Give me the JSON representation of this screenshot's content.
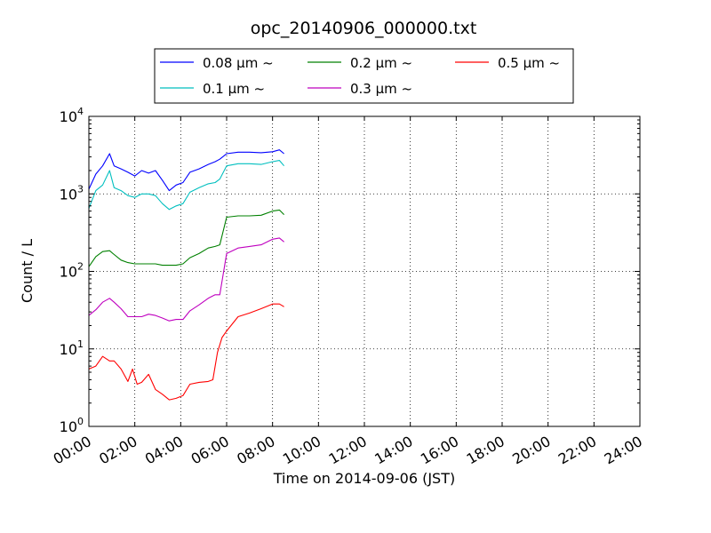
{
  "chart_data": {
    "type": "line",
    "title": "opc_20140906_000000.txt",
    "xlabel": "Time on 2014-09-06 (JST)",
    "ylabel": "Count / L",
    "x_unit": "hour",
    "xlim": [
      0,
      24
    ],
    "xticks": [
      0,
      2,
      4,
      6,
      8,
      10,
      12,
      14,
      16,
      18,
      20,
      22,
      24
    ],
    "xticklabels": [
      "00:00",
      "02:00",
      "04:00",
      "06:00",
      "08:00",
      "10:00",
      "12:00",
      "14:00",
      "16:00",
      "18:00",
      "20:00",
      "22:00",
      "24:00"
    ],
    "yscale": "log",
    "ylim": [
      1,
      10000
    ],
    "yticks": [
      {
        "value": 1,
        "base": "10",
        "exp": "0"
      },
      {
        "value": 10,
        "base": "10",
        "exp": "1"
      },
      {
        "value": 100,
        "base": "10",
        "exp": "2"
      },
      {
        "value": 1000,
        "base": "10",
        "exp": "3"
      },
      {
        "value": 10000,
        "base": "10",
        "exp": "4"
      }
    ],
    "grid": true,
    "legend": {
      "placement": "top",
      "columns": 3
    },
    "series": [
      {
        "name": "0.08 μm ~",
        "color": "#0000ff",
        "points": [
          [
            0,
            1150
          ],
          [
            0.3,
            1800
          ],
          [
            0.6,
            2300
          ],
          [
            0.9,
            3300
          ],
          [
            1.1,
            2300
          ],
          [
            1.4,
            2100
          ],
          [
            1.7,
            1900
          ],
          [
            2.0,
            1700
          ],
          [
            2.3,
            2000
          ],
          [
            2.6,
            1850
          ],
          [
            2.9,
            2000
          ],
          [
            3.2,
            1500
          ],
          [
            3.5,
            1100
          ],
          [
            3.8,
            1300
          ],
          [
            4.1,
            1400
          ],
          [
            4.4,
            1900
          ],
          [
            4.8,
            2100
          ],
          [
            5.2,
            2400
          ],
          [
            5.5,
            2600
          ],
          [
            5.7,
            2800
          ],
          [
            6.0,
            3300
          ],
          [
            6.5,
            3450
          ],
          [
            7.0,
            3450
          ],
          [
            7.5,
            3400
          ],
          [
            8.0,
            3500
          ],
          [
            8.3,
            3700
          ],
          [
            8.5,
            3300
          ]
        ]
      },
      {
        "name": "0.1 μm ~",
        "color": "#00bfbf",
        "points": [
          [
            0,
            650
          ],
          [
            0.3,
            1100
          ],
          [
            0.6,
            1300
          ],
          [
            0.9,
            2000
          ],
          [
            1.1,
            1200
          ],
          [
            1.4,
            1100
          ],
          [
            1.7,
            950
          ],
          [
            2.0,
            900
          ],
          [
            2.3,
            1000
          ],
          [
            2.6,
            1000
          ],
          [
            2.9,
            950
          ],
          [
            3.2,
            750
          ],
          [
            3.5,
            630
          ],
          [
            3.8,
            700
          ],
          [
            4.1,
            750
          ],
          [
            4.4,
            1050
          ],
          [
            4.8,
            1200
          ],
          [
            5.2,
            1350
          ],
          [
            5.5,
            1400
          ],
          [
            5.7,
            1550
          ],
          [
            6.0,
            2300
          ],
          [
            6.5,
            2450
          ],
          [
            7.0,
            2450
          ],
          [
            7.5,
            2400
          ],
          [
            8.0,
            2600
          ],
          [
            8.3,
            2700
          ],
          [
            8.5,
            2300
          ]
        ]
      },
      {
        "name": "0.2 μm ~",
        "color": "#008000",
        "points": [
          [
            0,
            115
          ],
          [
            0.3,
            155
          ],
          [
            0.6,
            180
          ],
          [
            0.9,
            185
          ],
          [
            1.1,
            165
          ],
          [
            1.4,
            140
          ],
          [
            1.7,
            130
          ],
          [
            2.0,
            125
          ],
          [
            2.3,
            125
          ],
          [
            2.6,
            125
          ],
          [
            2.9,
            125
          ],
          [
            3.2,
            120
          ],
          [
            3.5,
            120
          ],
          [
            3.8,
            120
          ],
          [
            4.1,
            125
          ],
          [
            4.4,
            150
          ],
          [
            4.8,
            170
          ],
          [
            5.2,
            200
          ],
          [
            5.5,
            210
          ],
          [
            5.7,
            220
          ],
          [
            6.0,
            500
          ],
          [
            6.5,
            520
          ],
          [
            7.0,
            520
          ],
          [
            7.5,
            530
          ],
          [
            8.0,
            600
          ],
          [
            8.3,
            620
          ],
          [
            8.5,
            540
          ]
        ]
      },
      {
        "name": "0.3 μm ~",
        "color": "#bf00bf",
        "points": [
          [
            0,
            27
          ],
          [
            0.3,
            32
          ],
          [
            0.6,
            40
          ],
          [
            0.9,
            45
          ],
          [
            1.1,
            40
          ],
          [
            1.4,
            33
          ],
          [
            1.7,
            26
          ],
          [
            2.0,
            26
          ],
          [
            2.3,
            26
          ],
          [
            2.6,
            28
          ],
          [
            2.9,
            27
          ],
          [
            3.2,
            25
          ],
          [
            3.5,
            23
          ],
          [
            3.8,
            24
          ],
          [
            4.1,
            24
          ],
          [
            4.4,
            31
          ],
          [
            4.8,
            37
          ],
          [
            5.2,
            45
          ],
          [
            5.5,
            50
          ],
          [
            5.7,
            50
          ],
          [
            6.0,
            170
          ],
          [
            6.5,
            200
          ],
          [
            7.0,
            210
          ],
          [
            7.5,
            220
          ],
          [
            8.0,
            260
          ],
          [
            8.3,
            270
          ],
          [
            8.5,
            240
          ]
        ]
      },
      {
        "name": "0.5 μm ~",
        "color": "#ff0000",
        "points": [
          [
            0,
            5.5
          ],
          [
            0.3,
            6.0
          ],
          [
            0.6,
            8.0
          ],
          [
            0.9,
            7.0
          ],
          [
            1.1,
            7.0
          ],
          [
            1.4,
            5.5
          ],
          [
            1.7,
            3.8
          ],
          [
            1.9,
            5.5
          ],
          [
            2.1,
            3.5
          ],
          [
            2.3,
            3.7
          ],
          [
            2.6,
            4.7
          ],
          [
            2.9,
            3.0
          ],
          [
            3.2,
            2.6
          ],
          [
            3.5,
            2.2
          ],
          [
            3.8,
            2.3
          ],
          [
            4.1,
            2.5
          ],
          [
            4.4,
            3.5
          ],
          [
            4.8,
            3.7
          ],
          [
            5.2,
            3.8
          ],
          [
            5.4,
            4.0
          ],
          [
            5.6,
            9.0
          ],
          [
            5.8,
            14.0
          ],
          [
            6.0,
            17.0
          ],
          [
            6.5,
            26.0
          ],
          [
            7.0,
            29.0
          ],
          [
            7.5,
            33.0
          ],
          [
            8.0,
            38.0
          ],
          [
            8.3,
            38.0
          ],
          [
            8.5,
            35.0
          ]
        ]
      }
    ]
  }
}
